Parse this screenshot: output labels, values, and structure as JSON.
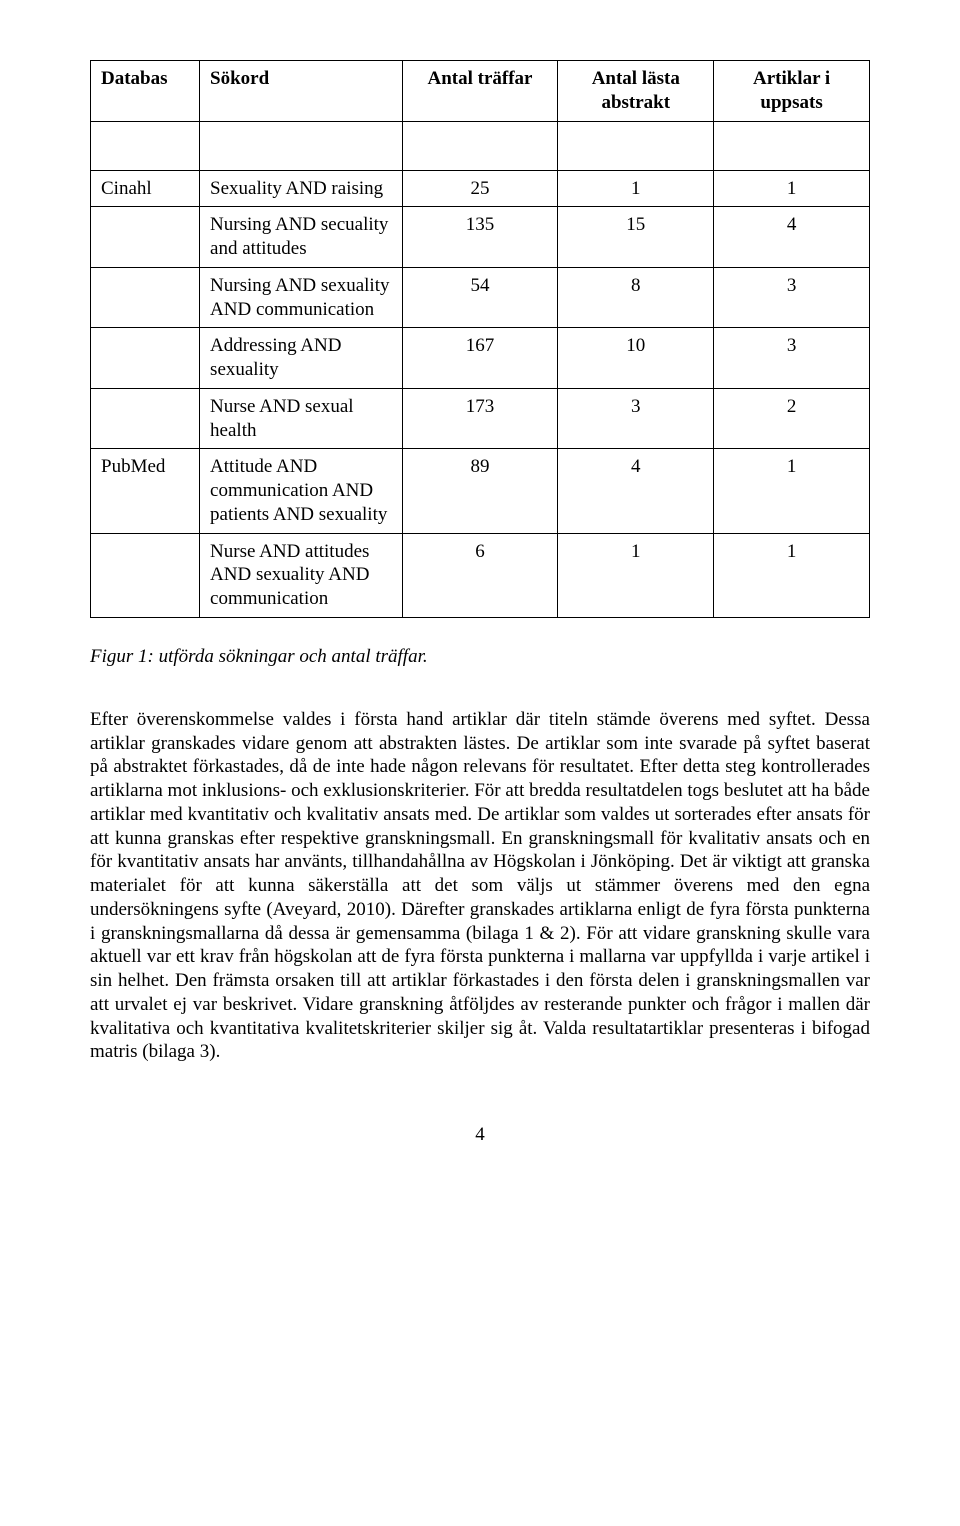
{
  "table": {
    "headers": {
      "db": "Databas",
      "keywords": "Sökord",
      "hits": "Antal träffar",
      "read": "Antal lästa abstrakt",
      "articles": "Artiklar i uppsats"
    },
    "rows": [
      {
        "db": "Cinahl",
        "kw": "Sexuality AND raising",
        "hits": "25",
        "read": "1",
        "art": "1"
      },
      {
        "db": "",
        "kw": "Nursing AND secuality and attitudes",
        "hits": "135",
        "read": "15",
        "art": "4"
      },
      {
        "db": "",
        "kw": "Nursing AND sexuality AND communication",
        "hits": "54",
        "read": "8",
        "art": "3"
      },
      {
        "db": "",
        "kw": "Addressing AND sexuality",
        "hits": "167",
        "read": "10",
        "art": "3"
      },
      {
        "db": "",
        "kw": "Nurse AND sexual health",
        "hits": "173",
        "read": "3",
        "art": "2"
      },
      {
        "db": "PubMed",
        "kw": "Attitude AND communication AND patients AND sexuality",
        "hits": "89",
        "read": "4",
        "art": "1"
      },
      {
        "db": "",
        "kw": "Nurse AND attitudes AND sexuality AND communication",
        "hits": "6",
        "read": "1",
        "art": "1"
      }
    ]
  },
  "caption": "Figur 1: utförda sökningar och antal träffar.",
  "paragraph": "Efter överenskommelse valdes i första hand artiklar där titeln stämde överens med syftet. Dessa artiklar granskades vidare genom att abstrakten lästes. De artiklar som inte svarade på syftet baserat på abstraktet förkastades, då de inte hade någon relevans för resultatet. Efter detta steg kontrollerades artiklarna mot inklusions- och exklusionskriterier. För att bredda resultatdelen togs beslutet att ha både artiklar med kvantitativ och kvalitativ ansats med. De artiklar som valdes ut sorterades efter ansats för att kunna granskas efter respektive granskningsmall. En granskningsmall för kvalitativ ansats och en för kvantitativ ansats har använts, tillhandahållna av Högskolan i Jönköping. Det är viktigt att granska materialet för att kunna säkerställa att det som väljs ut stämmer överens med den egna undersökningens syfte (Aveyard, 2010). Därefter granskades artiklarna enligt de fyra första punkterna i granskningsmallarna då dessa är gemensamma (bilaga 1 & 2). För att vidare granskning skulle vara aktuell var ett krav från högskolan att de fyra första punkterna i mallarna var uppfyllda i varje artikel i sin helhet. Den främsta orsaken till att artiklar förkastades i den första delen i granskningsmallen var att urvalet ej var beskrivet. Vidare granskning åtföljdes av resterande punkter och frågor i mallen där kvalitativa och kvantitativa kvalitetskriterier skiljer sig åt. Valda resultatartiklar presenteras i bifogad matris (bilaga 3).",
  "pageNumber": "4"
}
